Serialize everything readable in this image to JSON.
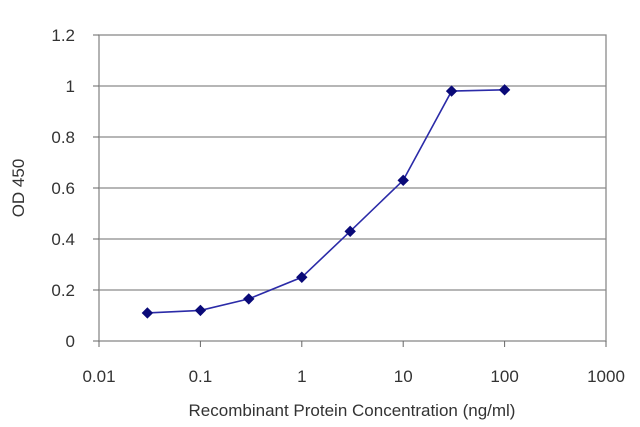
{
  "chart_data": {
    "type": "line",
    "xlabel": "Recombinant Protein Concentration (ng/ml)",
    "ylabel": "OD 450",
    "x_scale": "log",
    "xlim": [
      0.01,
      1000
    ],
    "ylim": [
      0,
      1.2
    ],
    "x_ticks": [
      "0.01",
      "0.1",
      "1",
      "10",
      "100",
      "1000"
    ],
    "y_ticks": [
      "0",
      "0.2",
      "0.4",
      "0.6",
      "0.8",
      "1",
      "1.2"
    ],
    "grid": "horizontal",
    "series": [
      {
        "color": "#2b2ba8",
        "marker_color": "#0a0a78",
        "points": [
          {
            "x": 0.03,
            "y": 0.11
          },
          {
            "x": 0.1,
            "y": 0.12
          },
          {
            "x": 0.3,
            "y": 0.165
          },
          {
            "x": 1,
            "y": 0.25
          },
          {
            "x": 3,
            "y": 0.43
          },
          {
            "x": 10,
            "y": 0.63
          },
          {
            "x": 30,
            "y": 0.98
          },
          {
            "x": 100,
            "y": 0.985
          }
        ]
      }
    ]
  }
}
